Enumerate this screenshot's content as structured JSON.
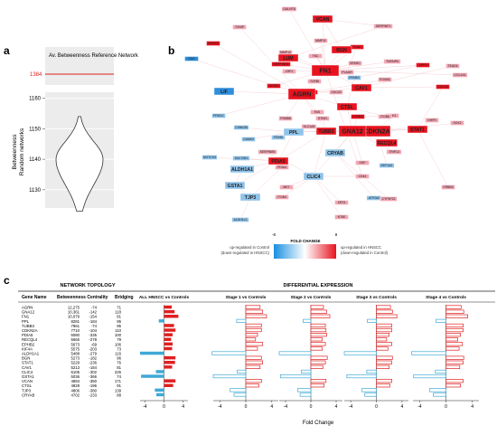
{
  "panel_a": {
    "letter": "a",
    "title": "Av. Betweenness Reference Network",
    "ref_value": "1384",
    "ylabel_line1": "Betweenness",
    "ylabel_line2": "Random networks",
    "y_ticks": [
      "1160",
      "1150",
      "1140",
      "1130"
    ],
    "chart_data": {
      "type": "violin",
      "title": "Av. Betweenness Reference Network",
      "reference_value": 1384,
      "ylabel": "Betweenness Random networks",
      "ylim": [
        1124,
        1162
      ],
      "yticks": [
        1130,
        1140,
        1150,
        1160
      ],
      "distribution_range": [
        1123,
        1154
      ],
      "distribution_mode": 1140
    }
  },
  "panel_b": {
    "letter": "b",
    "nodes": [
      {
        "id": "GALNT6",
        "label": "GALNT6",
        "tone": "pink",
        "size": "s"
      },
      {
        "id": "TXNIP",
        "label": "TXNIP",
        "tone": "pink",
        "size": "s"
      },
      {
        "id": "VCAN",
        "label": "VCAN",
        "tone": "red",
        "size": "m"
      },
      {
        "id": "SERPINF1",
        "label": "SERPINF1",
        "tone": "pink",
        "size": "s"
      },
      {
        "id": "MMP11",
        "label": "MMP11",
        "tone": "pink",
        "size": "s"
      },
      {
        "id": "RUNX2",
        "label": "RUNX2",
        "tone": "red",
        "size": "s"
      },
      {
        "id": "PLAU",
        "label": "PLAU",
        "tone": "red",
        "size": "s"
      },
      {
        "id": "BGN",
        "label": "BGN",
        "tone": "red",
        "size": "m"
      },
      {
        "id": "MMP12",
        "label": "MMP12",
        "tone": "pink",
        "size": "s"
      },
      {
        "id": "LUM",
        "label": "LUM",
        "tone": "red",
        "size": "m"
      },
      {
        "id": "FN1",
        "label": "FN1",
        "tone": "red",
        "size": "l"
      },
      {
        "id": "TNC",
        "label": "TNC",
        "tone": "pink",
        "size": "s"
      },
      {
        "id": "SPARC",
        "label": "SPARC",
        "tone": "pink",
        "size": "s"
      },
      {
        "id": "SERPINH1",
        "label": "SERPINH1",
        "tone": "red",
        "size": "s"
      },
      {
        "id": "TNFAIP6",
        "label": "TNFAIP6",
        "tone": "pink",
        "size": "s"
      },
      {
        "id": "LRP1",
        "label": "LRP1",
        "tone": "pink",
        "size": "s"
      },
      {
        "id": "SPP1",
        "label": "SPP1",
        "tone": "red",
        "size": "s"
      },
      {
        "id": "DSG",
        "label": "DSG",
        "tone": "blue",
        "size": "s"
      },
      {
        "id": "TGFBI",
        "label": "TGFBI",
        "tone": "pink",
        "size": "s"
      },
      {
        "id": "PLAUR",
        "label": "PLAUR",
        "tone": "pink",
        "size": "s"
      },
      {
        "id": "PPARG",
        "label": "PPARG",
        "tone": "blue",
        "size": "s"
      },
      {
        "id": "FOXM1",
        "label": "FOXM1",
        "tone": "pink",
        "size": "s"
      },
      {
        "id": "TEAD4",
        "label": "TEAD4",
        "tone": "pink",
        "size": "s"
      },
      {
        "id": "COL1A1",
        "label": "COL1A1",
        "tone": "pink",
        "size": "s"
      },
      {
        "id": "APOE",
        "label": "APOE",
        "tone": "red",
        "size": "s"
      },
      {
        "id": "CAV1",
        "label": "CAV1",
        "tone": "red",
        "size": "m"
      },
      {
        "id": "CXCL8",
        "label": "CXCL8",
        "tone": "red",
        "size": "s"
      },
      {
        "id": "LIF",
        "label": "LIF",
        "tone": "blue",
        "size": "m"
      },
      {
        "id": "KIF4A",
        "label": "KIF4A",
        "tone": "red",
        "size": "s"
      },
      {
        "id": "CDC20",
        "label": "CDC20",
        "tone": "pink",
        "size": "s"
      },
      {
        "id": "AGRN",
        "label": "AGRN",
        "tone": "red",
        "size": "l"
      },
      {
        "id": "CTSL",
        "label": "CTSL",
        "tone": "red",
        "size": "m"
      },
      {
        "id": "PRKDC",
        "label": "PRKDC",
        "tone": "blue",
        "size": "s"
      },
      {
        "id": "FAS",
        "label": "FAS",
        "tone": "pink",
        "size": "s"
      },
      {
        "id": "EPHB2",
        "label": "EPHB2",
        "tone": "red",
        "size": "s"
      },
      {
        "id": "CHK1",
        "label": "CHK1",
        "tone": "pink",
        "size": "s"
      },
      {
        "id": "PSMB8",
        "label": "PSMB8",
        "tone": "pink",
        "size": "s"
      },
      {
        "id": "STIM1",
        "label": "STIM1",
        "tone": "pink",
        "size": "s"
      },
      {
        "id": "TUBB3",
        "label": "TUBB3",
        "tone": "red",
        "size": "m"
      },
      {
        "id": "CDKN2A",
        "label": "CDKN2A",
        "tone": "red",
        "size": "l"
      },
      {
        "id": "RECQL4",
        "label": "RECQL4",
        "tone": "red",
        "size": "m"
      },
      {
        "id": "STAT1",
        "label": "STAT1",
        "tone": "red",
        "size": "m"
      },
      {
        "id": "CSNK2B",
        "label": "CSNK2B",
        "tone": "blue",
        "size": "s"
      },
      {
        "id": "CAMK2",
        "label": "CAMK2",
        "tone": "blue",
        "size": "s"
      },
      {
        "id": "PDHB",
        "label": "PDHB",
        "tone": "blue",
        "size": "s"
      },
      {
        "id": "SLC1A5",
        "label": "SLC1A5",
        "tone": "pink",
        "size": "s"
      },
      {
        "id": "DHFR",
        "label": "DHFR",
        "tone": "pink",
        "size": "s"
      },
      {
        "id": "PPL",
        "label": "PPL",
        "tone": "blue",
        "size": "m"
      },
      {
        "id": "GNA12",
        "label": "GNA12",
        "tone": "red",
        "size": "l"
      },
      {
        "id": "ITGB6",
        "label": "ITGB6",
        "tone": "pink",
        "size": "s"
      },
      {
        "id": "SOX2",
        "label": "SOX2",
        "tone": "pink",
        "size": "s"
      },
      {
        "id": "NOTCH3",
        "label": "NOTCH3",
        "tone": "blue",
        "size": "s"
      },
      {
        "id": "SULT2B1",
        "label": "SULT2B1",
        "tone": "blue",
        "size": "s"
      },
      {
        "id": "PDIA5",
        "label": "PDIA5",
        "tone": "red",
        "size": "m"
      },
      {
        "id": "CRYAB",
        "label": "CRYAB",
        "tone": "blue",
        "size": "m"
      },
      {
        "id": "TRIP13",
        "label": "TRIP13",
        "tone": "pink",
        "size": "s"
      },
      {
        "id": "ALDH1A1",
        "label": "ALDH1A1",
        "tone": "blue",
        "size": "m"
      },
      {
        "id": "PDIA4",
        "label": "PDIA4",
        "tone": "pink",
        "size": "s"
      },
      {
        "id": "EEF1A2",
        "label": "EEF1A2",
        "tone": "blue",
        "size": "s"
      },
      {
        "id": "CLIC4",
        "label": "CLIC4",
        "tone": "blue",
        "size": "m"
      },
      {
        "id": "DSP",
        "label": "DSP",
        "tone": "pink",
        "size": "s"
      },
      {
        "id": "CD44",
        "label": "CD44",
        "tone": "pink",
        "size": "s"
      },
      {
        "id": "GSTA1",
        "label": "GSTA1",
        "tone": "blue",
        "size": "m"
      },
      {
        "id": "TJP3",
        "label": "TJP3",
        "tone": "blue",
        "size": "m"
      },
      {
        "id": "ITGB4",
        "label": "ITGB4",
        "tone": "pink",
        "size": "s"
      },
      {
        "id": "ATP2A3",
        "label": "ATP2A3",
        "tone": "blue",
        "size": "s"
      },
      {
        "id": "CYP4F22",
        "label": "CYP4F22",
        "tone": "pink",
        "size": "s"
      },
      {
        "id": "KRT4",
        "label": "KRT4",
        "tone": "pink",
        "size": "s"
      },
      {
        "id": "ALDH1L1",
        "label": "ALDH1L1",
        "tone": "blue",
        "size": "s"
      },
      {
        "id": "NT5E",
        "label": "NT5E",
        "tone": "pink",
        "size": "s"
      },
      {
        "id": "MET",
        "label": "MET",
        "tone": "pink",
        "size": "s"
      },
      {
        "id": "SERPINB5",
        "label": "SERPINB5",
        "tone": "pink",
        "size": "s"
      },
      {
        "id": "ERBB3",
        "label": "ERBB3",
        "tone": "pink",
        "size": "s"
      }
    ],
    "legend": {
      "title": "FOLD CHANGE",
      "min_label": "-8",
      "max_label": "8",
      "low_text_1": "up-regulated in Control",
      "low_text_2": "(down-regulated in HNSCC)",
      "high_text_1": "up-regulated in HNSCC",
      "high_text_2": "(down-regulated in Control)"
    }
  },
  "panel_c": {
    "letter": "c",
    "topology_header": "NETWORK TOPOLOGY",
    "expression_header": "DIFFERENTIAL EXPRESSION",
    "columns": [
      "Gene Name",
      "Betweenness Centrality",
      "Bridging"
    ],
    "fold_change_label": "Fold Change",
    "x_ticks": [
      "-4",
      "0",
      "4"
    ],
    "rows": [
      {
        "gene": "AGRN",
        "betweenness": "12,275",
        "centroid": "-74",
        "bridging": "71"
      },
      {
        "gene": "GNA12",
        "betweenness": "10,361",
        "centroid": "-142",
        "bridging": "118"
      },
      {
        "gene": "FN1",
        "betweenness": "10,079",
        "centroid": "-154",
        "bridging": "81"
      },
      {
        "gene": "PPL",
        "betweenness": "8281",
        "centroid": "-184",
        "bridging": "95"
      },
      {
        "gene": "TUBB3",
        "betweenness": "7961",
        "centroid": "-74",
        "bridging": "95"
      },
      {
        "gene": "CDKN2A",
        "betweenness": "7710",
        "centroid": "-104",
        "bridging": "110"
      },
      {
        "gene": "PDIA5",
        "betweenness": "6080",
        "centroid": "-335",
        "bridging": "100"
      },
      {
        "gene": "RECQL4",
        "betweenness": "5665",
        "centroid": "-278",
        "bridging": "79"
      },
      {
        "gene": "EPHB2",
        "betweenness": "5673",
        "centroid": "-69",
        "bridging": "106"
      },
      {
        "gene": "KIF4A",
        "betweenness": "5575",
        "centroid": "-203",
        "bridging": "73"
      },
      {
        "gene": "ALDH1A1",
        "betweenness": "5488",
        "centroid": "-279",
        "bridging": "116"
      },
      {
        "gene": "BGN",
        "betweenness": "5273",
        "centroid": "-182",
        "bridging": "96"
      },
      {
        "gene": "STAT1",
        "betweenness": "5229",
        "centroid": "-236",
        "bridging": "76"
      },
      {
        "gene": "CAV1",
        "betweenness": "5213",
        "centroid": "-184",
        "bridging": "81"
      },
      {
        "gene": "CLIC4",
        "betweenness": "5105",
        "centroid": "-302",
        "bridging": "226"
      },
      {
        "gene": "GSTA1",
        "betweenness": "5036",
        "centroid": "-366",
        "bridging": "74"
      },
      {
        "gene": "VCAN",
        "betweenness": "4894",
        "centroid": "-350",
        "bridging": "171"
      },
      {
        "gene": "CTSL",
        "betweenness": "4828",
        "centroid": "-196",
        "bridging": "91"
      },
      {
        "gene": "TJP3",
        "betweenness": "4806",
        "centroid": "-380",
        "bridging": "139"
      },
      {
        "gene": "CRYAB",
        "betweenness": "4702",
        "centroid": "-233",
        "bridging": "88"
      }
    ],
    "chart_data": {
      "type": "bar",
      "orientation": "horizontal",
      "xlabel": "Fold Change",
      "xlim": [
        -5,
        5
      ],
      "xticks": [
        -4,
        0,
        4
      ],
      "categories": [
        "AGRN",
        "GNA12",
        "FN1",
        "PPL",
        "TUBB3",
        "CDKN2A",
        "PDIA5",
        "RECQL4",
        "EPHB2",
        "KIF4A",
        "ALDH1A1",
        "BGN",
        "STAT1",
        "CAV1",
        "CLIC4",
        "GSTA1",
        "VCAN",
        "CTSL",
        "TJP3",
        "CRYAB"
      ],
      "series": [
        {
          "name": "ALL HNSCC vs Controls",
          "color": "#e02020",
          "style": "filled",
          "values": [
            1.6,
            2.2,
            3.0,
            -1.1,
            2.1,
            2.4,
            1.8,
            1.5,
            1.8,
            1.7,
            -5.0,
            2.4,
            2.3,
            1.7,
            -1.7,
            -4.8,
            2.4,
            1.9,
            -1.9,
            -1.6
          ]
        },
        {
          "name": "Stage 1 vs Controls",
          "color": "#e02020",
          "style": "outline",
          "values": [
            2.2,
            2.6,
            3.2,
            -1.4,
            2.4,
            2.4,
            1.8,
            1.5,
            2.6,
            1.8,
            -5.2,
            2.4,
            2.6,
            2.2,
            -1.3,
            -5.0,
            2.4,
            2.0,
            -2.4,
            -1.8
          ]
        },
        {
          "name": "Stage 2 vs Controls",
          "color": "#e02020",
          "style": "outline",
          "values": [
            2.0,
            2.5,
            3.0,
            -1.2,
            2.3,
            2.4,
            2.5,
            1.8,
            2.3,
            1.8,
            -5.0,
            2.6,
            2.3,
            1.9,
            -1.5,
            -4.8,
            2.4,
            2.1,
            -2.1,
            -1.7
          ]
        },
        {
          "name": "Stage 3 vs Controls",
          "color": "#e02020",
          "style": "outline",
          "values": [
            2.2,
            2.5,
            3.2,
            -1.4,
            2.4,
            2.4,
            2.0,
            1.6,
            2.4,
            1.8,
            -5.0,
            2.5,
            2.4,
            2.0,
            -1.5,
            -4.6,
            2.4,
            2.1,
            -2.3,
            -1.8
          ]
        },
        {
          "name": "Stage 4 vs Controls",
          "color": "#e02020",
          "style": "outline",
          "values": [
            2.3,
            2.7,
            3.3,
            -1.5,
            2.6,
            2.6,
            2.2,
            1.8,
            2.5,
            2.0,
            -5.2,
            2.7,
            2.6,
            2.1,
            -1.6,
            -4.9,
            2.6,
            2.2,
            -2.5,
            -1.9
          ]
        }
      ]
    }
  },
  "colors": {
    "red": "#e8131f",
    "pink": "#f3a7b4",
    "blue": "#8fc3ea",
    "blue_strong": "#2f8fdc",
    "outline_blue": "#3fa9d6"
  }
}
